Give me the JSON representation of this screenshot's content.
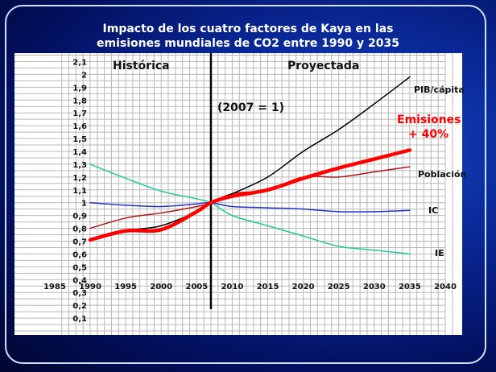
{
  "chart_data": {
    "type": "line",
    "title": [
      "Impacto de los cuatro factores de Kaya en las",
      "emisiones mundiales de CO2 entre 1990 y 2035"
    ],
    "xlim": [
      1985,
      2040
    ],
    "ylim": [
      0,
      2.1
    ],
    "x_ticks": [
      "1985",
      "1990",
      "1995",
      "2000",
      "2005",
      "2010",
      "2015",
      "2020",
      "2025",
      "2030",
      "2035",
      "2040"
    ],
    "y_ticks": [
      "0,1",
      "0,2",
      "0,3",
      "0,4",
      "0,5",
      "0,6",
      "0,7",
      "0,8",
      "0,9",
      "1",
      "1,1",
      "1,2",
      "1,3",
      "1,4",
      "1,5",
      "1,6",
      "1,7",
      "1,8",
      "1,9",
      "2",
      "2,1"
    ],
    "grid": true,
    "divider_year": 2007,
    "annotations": {
      "historic": "Histórica",
      "projected": "Proyectada",
      "base": "(2007 = 1)",
      "emissions_1": "Emisiones",
      "emissions_2": "+ 40%"
    },
    "x": [
      1990,
      1995,
      2000,
      2005,
      2007,
      2010,
      2015,
      2020,
      2025,
      2030,
      2035
    ],
    "series": [
      {
        "name": "IE",
        "color": "#22c99a",
        "width": 1.5,
        "values": [
          1.3,
          1.19,
          1.09,
          1.03,
          1.0,
          0.9,
          0.82,
          0.74,
          0.66,
          0.63,
          0.6
        ]
      },
      {
        "name": "IC",
        "color": "#2233cc",
        "width": 1.5,
        "values": [
          1.0,
          0.98,
          0.97,
          0.99,
          1.0,
          0.97,
          0.96,
          0.95,
          0.93,
          0.93,
          0.94
        ]
      },
      {
        "name": "Población",
        "color": "#b01818",
        "width": 1.5,
        "values": [
          0.8,
          0.88,
          0.92,
          0.97,
          1.0,
          1.07,
          1.1,
          1.2,
          1.2,
          1.24,
          1.28
        ]
      },
      {
        "name": "PIB/cápita",
        "color": "#000000",
        "width": 1.5,
        "values": [
          0.71,
          0.78,
          0.82,
          0.93,
          1.0,
          1.07,
          1.2,
          1.4,
          1.57,
          1.77,
          1.98
        ]
      },
      {
        "name": "Emisiones",
        "color": "#ff0000",
        "width": 4.5,
        "values": [
          0.71,
          0.78,
          0.79,
          0.93,
          1.0,
          1.05,
          1.1,
          1.19,
          1.27,
          1.34,
          1.41
        ]
      }
    ]
  }
}
